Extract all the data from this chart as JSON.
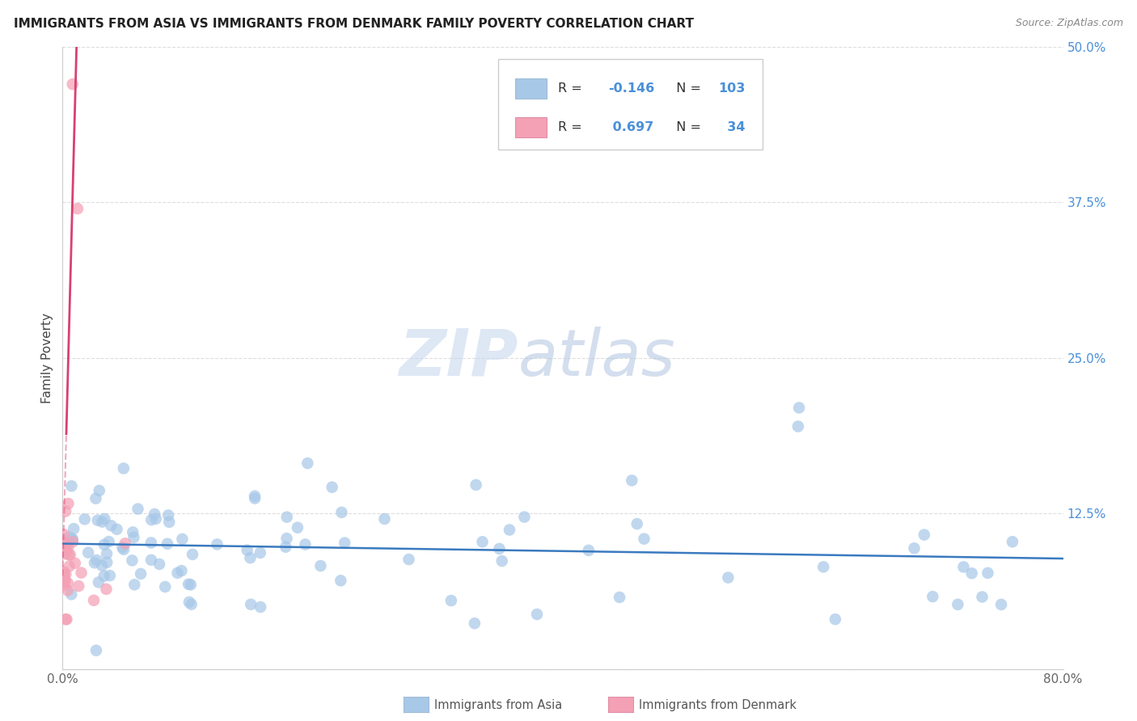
{
  "title": "IMMIGRANTS FROM ASIA VS IMMIGRANTS FROM DENMARK FAMILY POVERTY CORRELATION CHART",
  "source": "Source: ZipAtlas.com",
  "ylabel": "Family Poverty",
  "xlim": [
    0.0,
    0.8
  ],
  "ylim": [
    0.0,
    0.5
  ],
  "ytick_vals": [
    0.0,
    0.125,
    0.25,
    0.375,
    0.5
  ],
  "ytick_labels": [
    "",
    "12.5%",
    "25.0%",
    "37.5%",
    "50.0%"
  ],
  "xtick_vals": [
    0.0,
    0.1,
    0.2,
    0.3,
    0.4,
    0.5,
    0.6,
    0.7,
    0.8
  ],
  "xtick_labels": [
    "0.0%",
    "",
    "",
    "",
    "",
    "",
    "",
    "",
    "80.0%"
  ],
  "legend_r_asia": "-0.146",
  "legend_n_asia": "103",
  "legend_r_denmark": "0.697",
  "legend_n_denmark": "34",
  "color_asia": "#a8c8e8",
  "color_denmark": "#f4a0b5",
  "color_trendline_asia": "#3a7abf",
  "color_trendline_denmark": "#d94070",
  "color_ytick": "#4a90d9",
  "color_xtick": "#666666",
  "color_grid": "#dddddd",
  "color_spine": "#cccccc",
  "color_title": "#222222",
  "color_source": "#888888",
  "color_ylabel": "#444444",
  "watermark_zip_color": "#c8d8ee",
  "watermark_atlas_color": "#b0c4e0",
  "legend_box_color": "#cccccc",
  "legend_asia_rect_color": "#a0bcd8",
  "legend_denmark_rect_color": "#e090a8"
}
